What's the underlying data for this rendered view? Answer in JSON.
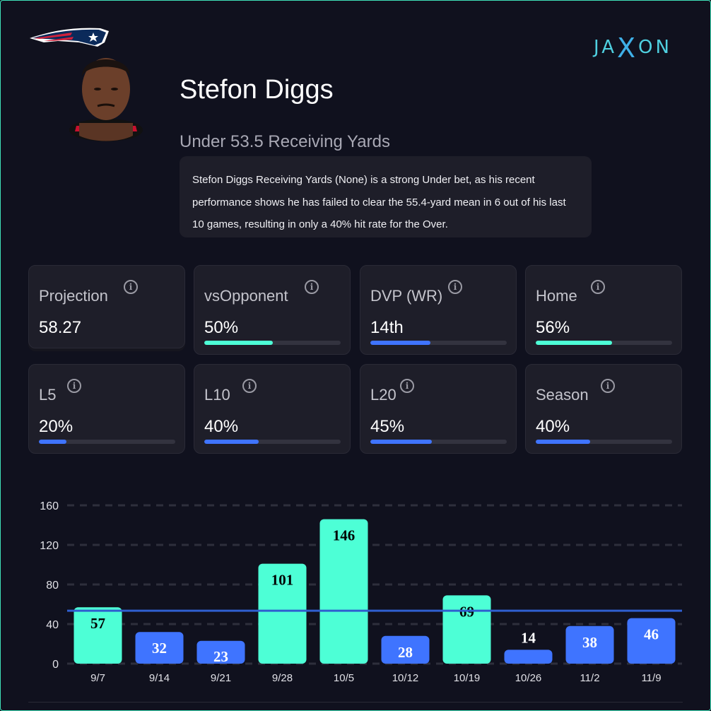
{
  "player": {
    "name": "Stefon Diggs",
    "team_logo": "new-england-patriots-logo",
    "prop": "Under 53.5 Receiving Yards",
    "analysis": "Stefon Diggs Receiving Yards (None) is a strong Under bet, as his recent performance shows he has failed to clear the 55.4-yard mean in 6 out of his last 10 games, resulting in only a 40% hit rate for the Over."
  },
  "brand": {
    "a": "JA",
    "x": "X",
    "b": "ON"
  },
  "colors": {
    "over": "#4dffd6",
    "under": "#3f74ff",
    "line": "#2f5fcf"
  },
  "stats": [
    {
      "label": "Projection",
      "value": "58.27",
      "percent": null
    },
    {
      "label": "vsOpponent",
      "value": "50%",
      "percent": 50,
      "color": "#4dffd6"
    },
    {
      "label": "DVP (WR)",
      "value": "14th",
      "percent": 44,
      "color": "#3f74ff"
    },
    {
      "label": "Home",
      "value": "56%",
      "percent": 56,
      "color": "#4dffd6"
    },
    {
      "label": "L5",
      "value": "20%",
      "percent": 20,
      "color": "#3f74ff"
    },
    {
      "label": "L10",
      "value": "40%",
      "percent": 40,
      "color": "#3f74ff"
    },
    {
      "label": "L20",
      "value": "45%",
      "percent": 45,
      "color": "#3f74ff"
    },
    {
      "label": "Season",
      "value": "40%",
      "percent": 40,
      "color": "#3f74ff"
    }
  ],
  "chart_data": {
    "type": "bar",
    "categories": [
      "9/7",
      "9/14",
      "9/21",
      "9/28",
      "10/5",
      "10/12",
      "10/19",
      "10/26",
      "11/2",
      "11/9"
    ],
    "values": [
      57,
      32,
      23,
      101,
      146,
      28,
      69,
      14,
      38,
      46
    ],
    "line": 53.5,
    "ylim": [
      0,
      160
    ],
    "yticks": [
      0,
      40,
      80,
      120,
      160
    ],
    "grid": true,
    "xlabel": "",
    "ylabel": "",
    "title": ""
  }
}
